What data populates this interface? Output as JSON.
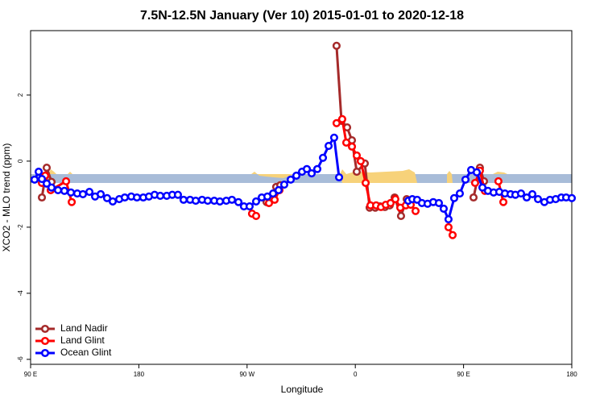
{
  "chart_data": {
    "type": "line",
    "title": "7.5N-12.5N January (Ver 10)   2015-01-01 to 2020-12-18",
    "x_label": "Longitude",
    "y_label": "XCO2 - MLO trend (ppm)",
    "xlim": [
      90,
      540
    ],
    "ylim": [
      -6.15,
      3.95
    ],
    "xticks": [
      {
        "value": 90,
        "label": "90 E"
      },
      180,
      {
        "value": 270,
        "label": "90 W"
      },
      {
        "value": 360,
        "label": "0"
      },
      {
        "value": 450,
        "label": "90 E"
      },
      {
        "value": 540,
        "label": "180"
      }
    ],
    "yticks": [
      -6,
      -4,
      -2,
      0,
      2
    ],
    "legend": "bottom-left",
    "series": [
      {
        "name": "Land Nadir",
        "color": "#a52a2a",
        "x": [
          99.4,
          103.4,
          107.4,
          null,
          286.2,
          290.2,
          294.2,
          297.6,
          null,
          344.4,
          348.5,
          353.2,
          357.2,
          361.2,
          367.9,
          371.9,
          376.6,
          380.6,
          384.6,
          388.6,
          392.7,
          398.0,
          402.7,
          null,
          458.3,
          463.6,
          467.0
        ],
        "values": [
          -1.1,
          -0.2,
          -0.63,
          null,
          -1.24,
          -1.15,
          -0.78,
          -0.73,
          null,
          3.49,
          1.22,
          1.02,
          0.63,
          -0.32,
          -0.07,
          -1.41,
          -1.41,
          -1.37,
          -1.39,
          -1.34,
          -1.1,
          -1.66,
          -1.15,
          null,
          -1.1,
          -0.2,
          -0.61
        ]
      },
      {
        "name": "Land Glint",
        "color": "#ff0000",
        "x": [
          99.4,
          102.1,
          106.7,
          119.5,
          124.2,
          null,
          274.1,
          277.5,
          null,
          288.2,
          292.9,
          296.9,
          null,
          344.4,
          349.1,
          352.5,
          357.2,
          361.2,
          364.5,
          368.6,
          372.6,
          377.3,
          381.3,
          385.3,
          389.3,
          393.3,
          397.4,
          402.0,
          406.1,
          410.1,
          null,
          437.5,
          440.9,
          null,
          459.6,
          463.6,
          467.7,
          null,
          479.0,
          483.1
        ],
        "values": [
          -0.66,
          -0.44,
          -0.88,
          -0.61,
          -1.24,
          null,
          -1.59,
          -1.66,
          null,
          -1.27,
          -1.17,
          -0.88,
          null,
          1.15,
          1.27,
          0.56,
          0.44,
          0.17,
          0.0,
          -0.66,
          -1.34,
          -1.34,
          -1.39,
          -1.32,
          -1.27,
          -1.15,
          -1.41,
          -1.34,
          -1.32,
          -1.51,
          null,
          -2.0,
          -2.24,
          null,
          -0.66,
          -0.29,
          -0.9,
          null,
          -0.61,
          -1.24
        ]
      },
      {
        "name": "Ocean Glint",
        "color": "#0000ff",
        "x": [
          93.3,
          96.7,
          99.4,
          103.4,
          107.4,
          112.8,
          118.1,
          123.5,
          128.8,
          133.5,
          138.9,
          143.6,
          148.3,
          153.6,
          158.3,
          163.7,
          168.3,
          173.7,
          178.4,
          183.7,
          188.4,
          193.1,
          197.8,
          203.2,
          207.8,
          212.5,
          217.2,
          222.6,
          227.3,
          232.6,
          237.3,
          242.7,
          247.4,
          252.7,
          257.4,
          262.8,
          267.4,
          272.1,
          277.5,
          282.2,
          286.9,
          291.6,
          296.2,
          300.9,
          306.3,
          311.0,
          315.7,
          319.7,
          323.7,
          328.4,
          333.1,
          337.8,
          342.4,
          346.5,
          null,
          404.0,
          407.4,
          411.4,
          415.4,
          420.1,
          424.8,
          429.5,
          433.5,
          437.5,
          442.2,
          446.9,
          451.6,
          456.3,
          461.0,
          465.7,
          470.3,
          475.0,
          479.7,
          484.4,
          489.1,
          493.1,
          497.8,
          502.5,
          507.2,
          511.9,
          517.2,
          521.9,
          526.6,
          531.3,
          535.3,
          540.0
        ],
        "values": [
          -0.56,
          -0.32,
          -0.54,
          -0.68,
          -0.8,
          -0.88,
          -0.9,
          -0.95,
          -0.98,
          -1.0,
          -0.93,
          -1.07,
          -1.0,
          -1.12,
          -1.22,
          -1.15,
          -1.1,
          -1.07,
          -1.1,
          -1.1,
          -1.07,
          -1.02,
          -1.05,
          -1.05,
          -1.02,
          -1.02,
          -1.17,
          -1.17,
          -1.2,
          -1.17,
          -1.2,
          -1.2,
          -1.22,
          -1.2,
          -1.17,
          -1.24,
          -1.37,
          -1.37,
          -1.22,
          -1.1,
          -1.07,
          -0.98,
          -0.88,
          -0.71,
          -0.56,
          -0.44,
          -0.32,
          -0.24,
          -0.37,
          -0.24,
          0.1,
          0.46,
          0.71,
          -0.49,
          null,
          -1.2,
          -1.15,
          -1.17,
          -1.27,
          -1.29,
          -1.24,
          -1.27,
          -1.44,
          -1.76,
          -1.12,
          -0.98,
          -0.56,
          -0.27,
          -0.34,
          -0.8,
          -0.9,
          -0.95,
          -0.93,
          -0.98,
          -1.0,
          -1.02,
          -0.98,
          -1.1,
          -1.0,
          -1.15,
          -1.24,
          -1.17,
          -1.15,
          -1.1,
          -1.1,
          -1.12
        ]
      }
    ]
  }
}
